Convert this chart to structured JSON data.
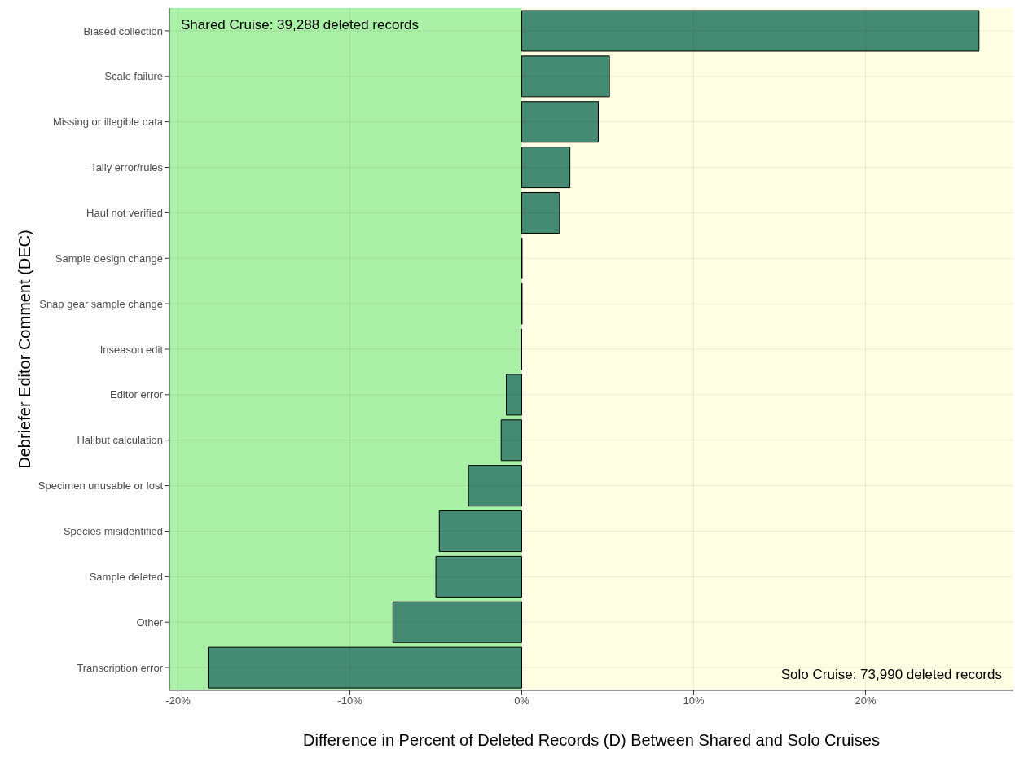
{
  "chart_data": {
    "type": "bar",
    "orientation": "horizontal",
    "xlabel": "Difference in Percent of Deleted Records (D) Between Shared and Solo Cruises",
    "ylabel": "Debriefer Editor Comment (DEC)",
    "categories": [
      "Biased collection",
      "Scale failure",
      "Missing or illegible data",
      "Tally error/rules",
      "Haul not verified",
      "Sample design change",
      "Snap gear sample change",
      "Inseason edit",
      "Editor error",
      "Halibut calculation",
      "Specimen unusable or lost",
      "Species misidentified",
      "Sample deleted",
      "Other",
      "Transcription error"
    ],
    "values": [
      26.6,
      5.1,
      4.45,
      2.8,
      2.2,
      0.02,
      0.02,
      -0.05,
      -0.9,
      -1.2,
      -3.1,
      -4.8,
      -5.0,
      -7.5,
      -18.25
    ],
    "color": "#458b73",
    "xlim": [
      -20.5,
      28.6
    ],
    "xticks": [
      {
        "value": -20,
        "label": "-20%"
      },
      {
        "value": -10,
        "label": "-10%"
      },
      {
        "value": 0,
        "label": "0%"
      },
      {
        "value": 10,
        "label": "10%"
      },
      {
        "value": 20,
        "label": "20%"
      }
    ],
    "bands": [
      {
        "axis": "x",
        "from": -20.5,
        "to": 0,
        "label": "Shared Cruise: 39,288 deleted records",
        "color": "#aaf0a6"
      },
      {
        "axis": "x",
        "from": 0,
        "to": 28.6,
        "label": "Solo Cruise: 73,990 deleted records",
        "color": "#ffffe3"
      }
    ],
    "grid": true,
    "legend": false
  }
}
